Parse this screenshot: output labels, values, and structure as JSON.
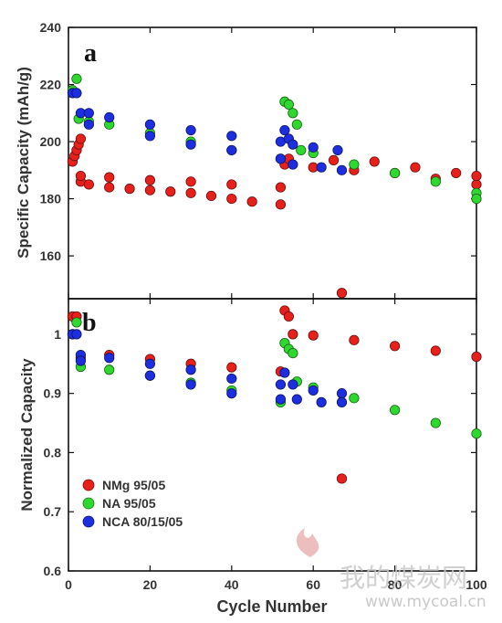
{
  "chart_data": [
    {
      "panel": "a",
      "type": "scatter",
      "ylabel": "Specific Capacity (mAh/g)",
      "xlim": [
        0,
        100
      ],
      "ylim": [
        145,
        240
      ],
      "yticks": [
        160,
        180,
        200,
        220,
        240
      ],
      "series": [
        {
          "name": "NMg 95/05",
          "color": "#e8201c",
          "points": [
            [
              1,
              193
            ],
            [
              1.5,
              195
            ],
            [
              2,
              197
            ],
            [
              2.5,
              199
            ],
            [
              3,
              201
            ],
            [
              3,
              186
            ],
            [
              5,
              185
            ],
            [
              10,
              184
            ],
            [
              15,
              183.5
            ],
            [
              20,
              183
            ],
            [
              25,
              182.5
            ],
            [
              30,
              182
            ],
            [
              35,
              181
            ],
            [
              40,
              180
            ],
            [
              45,
              179
            ],
            [
              52,
              178
            ],
            [
              3,
              188
            ],
            [
              10,
              187.5
            ],
            [
              20,
              186.5
            ],
            [
              30,
              186
            ],
            [
              40,
              185
            ],
            [
              52,
              184
            ],
            [
              67,
              147
            ],
            [
              53,
              192
            ],
            [
              60,
              191
            ],
            [
              70,
              190
            ],
            [
              80,
              189
            ],
            [
              90,
              187
            ],
            [
              100,
              185
            ],
            [
              54,
              194
            ],
            [
              65,
              193.5
            ],
            [
              75,
              193
            ],
            [
              85,
              191
            ],
            [
              95,
              189
            ],
            [
              100,
              188
            ]
          ]
        },
        {
          "name": "NA 95/05",
          "color": "#2fd82f",
          "points": [
            [
              1,
              218
            ],
            [
              2,
              222
            ],
            [
              2.5,
              208
            ],
            [
              5,
              207
            ],
            [
              10,
              206
            ],
            [
              20,
              203
            ],
            [
              30,
              200
            ],
            [
              40,
              197
            ],
            [
              52,
              194
            ],
            [
              53,
              214
            ],
            [
              54,
              213
            ],
            [
              55,
              210
            ],
            [
              56,
              206
            ],
            [
              57,
              197
            ],
            [
              60,
              196
            ],
            [
              70,
              192
            ],
            [
              80,
              189
            ],
            [
              90,
              186
            ],
            [
              100,
              182
            ],
            [
              100,
              180
            ]
          ]
        },
        {
          "name": "NCA 80/15/05",
          "color": "#1c2ee0",
          "points": [
            [
              1,
              217
            ],
            [
              2,
              217
            ],
            [
              3,
              210
            ],
            [
              5,
              210
            ],
            [
              10,
              208.5
            ],
            [
              20,
              206
            ],
            [
              30,
              204
            ],
            [
              40,
              202
            ],
            [
              52,
              200
            ],
            [
              5,
              206
            ],
            [
              20,
              202
            ],
            [
              30,
              199
            ],
            [
              40,
              197
            ],
            [
              52,
              194
            ],
            [
              53,
              204
            ],
            [
              54,
              201
            ],
            [
              55,
              199
            ],
            [
              60,
              198
            ],
            [
              66,
              197
            ],
            [
              55,
              192
            ],
            [
              62,
              191
            ],
            [
              67,
              190
            ]
          ]
        }
      ]
    },
    {
      "panel": "b",
      "type": "scatter",
      "xlabel": "Cycle Number",
      "ylabel": "Normalized Capacity",
      "xlim": [
        0,
        100
      ],
      "ylim": [
        0.6,
        1.06
      ],
      "xticks": [
        0,
        20,
        40,
        60,
        80,
        100
      ],
      "yticks": [
        0.6,
        0.7,
        0.8,
        0.9,
        1
      ],
      "series": [
        {
          "name": "NMg 95/05",
          "color": "#e8201c",
          "points": [
            [
              1,
              1.03
            ],
            [
              2,
              1.03
            ],
            [
              3,
              0.96
            ],
            [
              10,
              0.965
            ],
            [
              20,
              0.958
            ],
            [
              30,
              0.95
            ],
            [
              40,
              0.944
            ],
            [
              52,
              0.937
            ],
            [
              53,
              1.04
            ],
            [
              54,
              1.03
            ],
            [
              55,
              1.0
            ],
            [
              60,
              0.998
            ],
            [
              70,
              0.99
            ],
            [
              80,
              0.98
            ],
            [
              90,
              0.972
            ],
            [
              100,
              0.962
            ],
            [
              67,
              0.756
            ]
          ]
        },
        {
          "name": "NA 95/05",
          "color": "#2fd82f",
          "points": [
            [
              1,
              1.0
            ],
            [
              2,
              1.02
            ],
            [
              3,
              0.945
            ],
            [
              10,
              0.94
            ],
            [
              20,
              0.93
            ],
            [
              30,
              0.918
            ],
            [
              40,
              0.905
            ],
            [
              52,
              0.885
            ],
            [
              53,
              0.985
            ],
            [
              54,
              0.975
            ],
            [
              55,
              0.968
            ],
            [
              56,
              0.92
            ],
            [
              60,
              0.91
            ],
            [
              70,
              0.892
            ],
            [
              80,
              0.872
            ],
            [
              90,
              0.85
            ],
            [
              100,
              0.832
            ]
          ]
        },
        {
          "name": "NCA 80/15/05",
          "color": "#1c2ee0",
          "points": [
            [
              1,
              1.0
            ],
            [
              2,
              1.0
            ],
            [
              3,
              0.965
            ],
            [
              10,
              0.96
            ],
            [
              20,
              0.95
            ],
            [
              30,
              0.94
            ],
            [
              40,
              0.925
            ],
            [
              52,
              0.915
            ],
            [
              3,
              0.955
            ],
            [
              20,
              0.93
            ],
            [
              30,
              0.915
            ],
            [
              40,
              0.9
            ],
            [
              52,
              0.89
            ],
            [
              53,
              0.935
            ],
            [
              55,
              0.915
            ],
            [
              60,
              0.905
            ],
            [
              67,
              0.9
            ],
            [
              56,
              0.89
            ],
            [
              62,
              0.885
            ],
            [
              67,
              0.885
            ]
          ]
        }
      ]
    }
  ],
  "panel_labels": {
    "a": "a",
    "b": "b"
  },
  "axis_labels": {
    "top_y": "Specific Capacity (mAh/g)",
    "bottom_y": "Normalized Capacity",
    "x": "Cycle Number"
  },
  "legend": [
    {
      "label": "NMg 95/05",
      "color": "#e8201c"
    },
    {
      "label": "NA 95/05",
      "color": "#2fd82f"
    },
    {
      "label": "NCA 80/15/05",
      "color": "#1c2ee0"
    }
  ],
  "watermark": {
    "text": "我的煤炭网",
    "url": "www.mycoal.cn"
  }
}
